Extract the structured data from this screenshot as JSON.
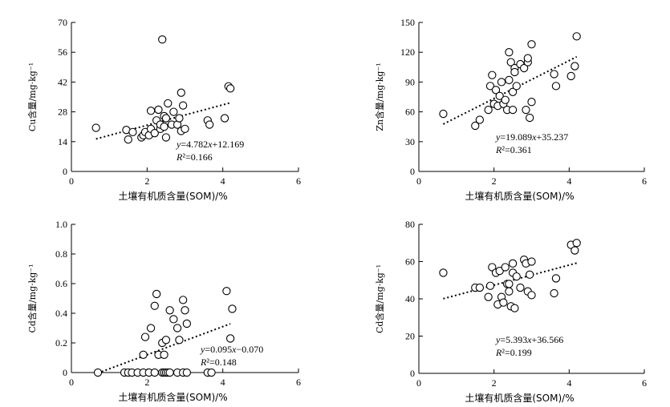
{
  "chart_data": [
    {
      "type": "scatter",
      "ylabel": "Cu含量/mg·kg⁻¹",
      "xlabel": "土壤有机质含量(SOM)/%",
      "xlim": [
        0,
        6
      ],
      "ylim": [
        0,
        70
      ],
      "xticks": [
        "0",
        "2",
        "4",
        "6"
      ],
      "yticks": [
        "0",
        "14",
        "28",
        "42",
        "56",
        "70"
      ],
      "x": [
        0.65,
        1.45,
        1.5,
        1.62,
        1.85,
        1.9,
        1.95,
        2.05,
        2.1,
        2.1,
        2.2,
        2.25,
        2.3,
        2.35,
        2.35,
        2.4,
        2.45,
        2.45,
        2.5,
        2.5,
        2.55,
        2.65,
        2.7,
        2.8,
        2.85,
        2.9,
        2.9,
        2.95,
        3.0,
        3.6,
        3.65,
        4.05,
        4.15,
        4.2
      ],
      "y": [
        20.5,
        19.5,
        15,
        18.5,
        16,
        17,
        18.5,
        17,
        20,
        28.5,
        18,
        24,
        29,
        20,
        22,
        62,
        21,
        26,
        16,
        25,
        32,
        22,
        28,
        22,
        25,
        19,
        37,
        31,
        20,
        24,
        22,
        25,
        40,
        39
      ],
      "trend": {
        "slope": 4.782,
        "intercept": 12.169,
        "x_range": [
          0.65,
          4.2
        ]
      },
      "equation": "y=4.782x+12.169",
      "r2": "R²=0.166"
    },
    {
      "type": "scatter",
      "ylabel": "Zn含量/mg·kg⁻¹",
      "xlabel": "土壤有机质含量(SOM)/%",
      "xlim": [
        0,
        6
      ],
      "ylim": [
        0,
        150
      ],
      "xticks": [
        "0",
        "2",
        "4",
        "6"
      ],
      "yticks": [
        "0",
        "30",
        "60",
        "90",
        "120",
        "150"
      ],
      "x": [
        0.65,
        1.5,
        1.62,
        1.85,
        1.9,
        1.95,
        2.0,
        2.05,
        2.1,
        2.15,
        2.2,
        2.25,
        2.3,
        2.35,
        2.4,
        2.4,
        2.45,
        2.5,
        2.5,
        2.55,
        2.55,
        2.6,
        2.7,
        2.8,
        2.85,
        2.9,
        2.9,
        2.95,
        3.0,
        3.0,
        3.6,
        3.65,
        4.05,
        4.15,
        4.2
      ],
      "y": [
        58,
        46,
        52,
        62,
        86,
        97,
        68,
        82,
        66,
        76,
        90,
        68,
        72,
        62,
        92,
        120,
        110,
        62,
        80,
        104,
        100,
        86,
        108,
        104,
        62,
        110,
        114,
        54,
        128,
        70,
        98,
        86,
        96,
        106,
        136
      ],
      "trend": {
        "slope": 19.089,
        "intercept": 35.237,
        "x_range": [
          0.65,
          4.2
        ]
      },
      "equation": "y=19.089x+35.237",
      "r2": "R²=0.361"
    },
    {
      "type": "scatter",
      "ylabel": "Cd含量/mg·kg⁻¹",
      "xlabel": "土壤有机质含量(SOM)/%",
      "xlim": [
        0,
        6
      ],
      "ylim": [
        0,
        1.0
      ],
      "xticks": [
        "0",
        "2",
        "4",
        "6"
      ],
      "yticks": [
        "0",
        "0.2",
        "0.4",
        "0.6",
        "0.8",
        "1.0"
      ],
      "x": [
        0.7,
        1.4,
        1.5,
        1.6,
        1.75,
        1.9,
        2.05,
        2.2,
        2.4,
        2.45,
        2.5,
        2.55,
        2.6,
        2.8,
        2.95,
        3.05,
        3.6,
        3.7,
        1.9,
        1.95,
        2.1,
        2.2,
        2.25,
        2.3,
        2.4,
        2.45,
        2.5,
        2.6,
        2.7,
        2.8,
        2.85,
        2.95,
        3.0,
        3.05,
        4.1,
        4.2,
        4.25
      ],
      "y": [
        0,
        0,
        0,
        0,
        0,
        0,
        0,
        0,
        0,
        0,
        0,
        0,
        0,
        0,
        0,
        0,
        0,
        0,
        0.12,
        0.24,
        0.3,
        0.45,
        0.53,
        0.12,
        0.2,
        0.12,
        0.22,
        0.42,
        0.36,
        0.3,
        0.22,
        0.49,
        0.42,
        0.33,
        0.55,
        0.23,
        0.43
      ],
      "trend": {
        "slope": 0.095,
        "intercept": -0.07,
        "x_range": [
          0.7,
          4.2
        ]
      },
      "equation": "y=0.095x−0.070",
      "r2": "R²=0.148"
    },
    {
      "type": "scatter",
      "ylabel": "Cd含量/mg·kg⁻¹",
      "xlabel": "土壤有机质含量(SOM)/%",
      "xlim": [
        0,
        6
      ],
      "ylim": [
        0,
        80
      ],
      "xticks": [
        "0",
        "2",
        "4",
        "6"
      ],
      "yticks": [
        "0",
        "20",
        "40",
        "60",
        "80"
      ],
      "x": [
        0.65,
        1.5,
        1.62,
        1.85,
        1.9,
        1.95,
        2.05,
        2.1,
        2.15,
        2.2,
        2.25,
        2.3,
        2.35,
        2.4,
        2.4,
        2.45,
        2.5,
        2.5,
        2.55,
        2.6,
        2.7,
        2.8,
        2.85,
        2.9,
        2.95,
        3.0,
        3.0,
        3.6,
        3.65,
        4.05,
        4.15,
        4.2
      ],
      "y": [
        54,
        46,
        46,
        41,
        47,
        57,
        54,
        37,
        55,
        41,
        38,
        57,
        48,
        44,
        48,
        36,
        59,
        54,
        35,
        52,
        46,
        61,
        59,
        44,
        53,
        60,
        42,
        43,
        51,
        69,
        66,
        70
      ],
      "trend": {
        "slope": 5.393,
        "intercept": 36.566,
        "x_range": [
          0.65,
          4.2
        ]
      },
      "equation": "y=5.393x+36.566",
      "r2": "R²=0.199"
    }
  ]
}
